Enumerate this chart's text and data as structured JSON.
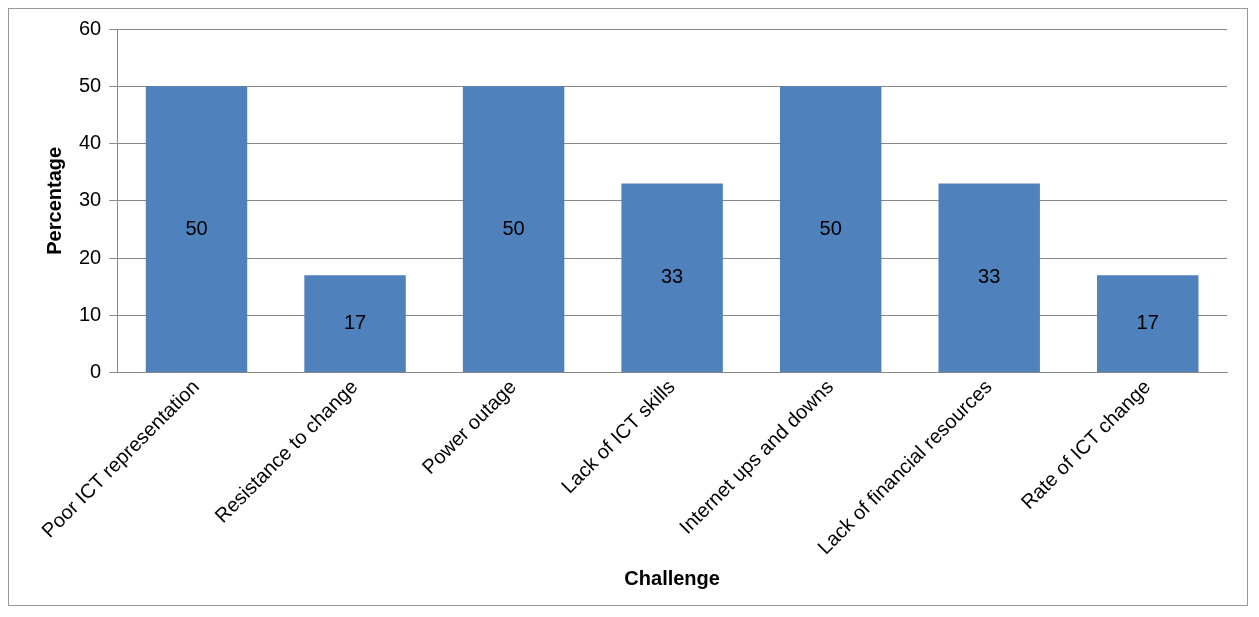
{
  "chart_data": {
    "type": "bar",
    "xlabel": "Challenge",
    "ylabel": "Percentage",
    "categories": [
      "Poor ICT representation",
      "Resistance to change",
      "Power outage",
      "Lack of ICT skills",
      "Internet ups and downs",
      "Lack of financial resources",
      "Rate of ICT change"
    ],
    "values": [
      50,
      17,
      50,
      33,
      50,
      33,
      17
    ],
    "color": "#4f81bd",
    "ylim": [
      0,
      60
    ],
    "yticks": [
      0,
      10,
      20,
      30,
      40,
      50,
      60
    ],
    "grid": "y",
    "data_labels": true,
    "legend": false
  }
}
